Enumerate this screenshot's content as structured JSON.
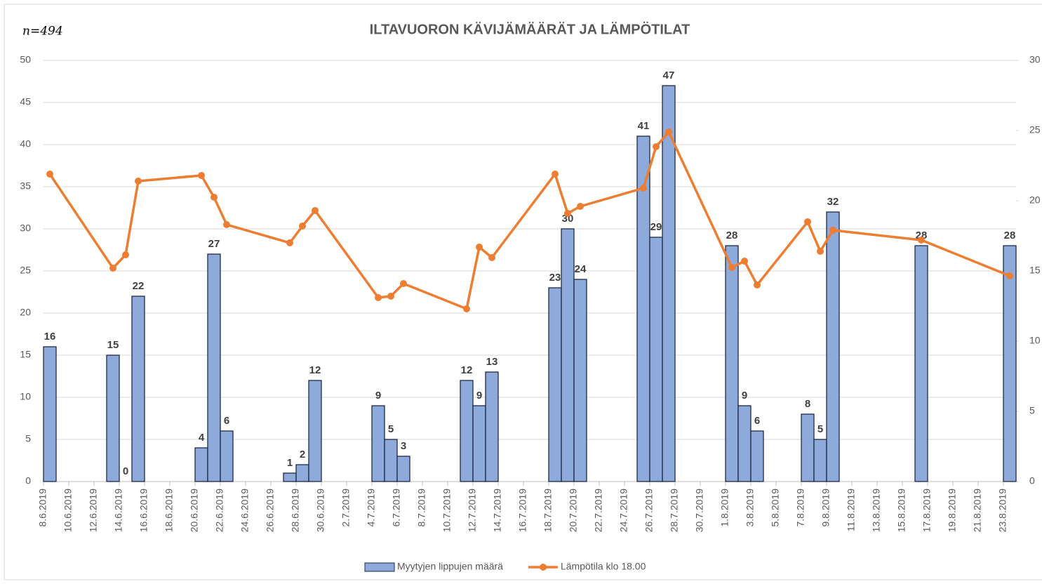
{
  "chart_data": {
    "type": "bar-line",
    "title": "ILTAVUORON KÄVIJÄMÄÄRÄT JA LÄMPÖTILAT",
    "annotation": "n=494",
    "x": [
      "8.6.2019",
      "13.6.2019",
      "14.6.2019",
      "15.6.2019",
      "20.6.2019",
      "21.6.2019",
      "22.6.2019",
      "27.6.2019",
      "28.6.2019",
      "29.6.2019",
      "4.7.2019",
      "5.7.2019",
      "6.7.2019",
      "11.7.2019",
      "12.7.2019",
      "13.7.2019",
      "18.7.2019",
      "19.7.2019",
      "20.7.2019",
      "25.7.2019",
      "26.7.2019",
      "27.7.2019",
      "1.8.2019",
      "2.8.2019",
      "3.8.2019",
      "7.8.2019",
      "8.8.2019",
      "9.8.2019",
      "16.8.2019",
      "23.8.2019"
    ],
    "series": [
      {
        "name": "Myytyjen lippujen määrä",
        "type": "bar",
        "color": "#8eaadb",
        "edge_color": "#1f2a44",
        "values": [
          16,
          15,
          0,
          22,
          4,
          27,
          6,
          1,
          2,
          12,
          9,
          5,
          3,
          12,
          9,
          13,
          23,
          30,
          24,
          41,
          29,
          47,
          28,
          9,
          6,
          8,
          5,
          32,
          28,
          28
        ]
      },
      {
        "name": "Lämpötila klo 18.00",
        "type": "line",
        "axis": "y2",
        "color": "#ed7d31",
        "values": [
          21.9,
          15.2,
          16.15,
          21.4,
          21.8,
          20.25,
          18.3,
          17,
          18.2,
          19.3,
          13.1,
          13.2,
          14.1,
          12.3,
          16.7,
          15.95,
          21.9,
          19.1,
          19.6,
          20.9,
          23.85,
          24.9,
          15.25,
          15.7,
          14,
          18.5,
          16.4,
          17.9,
          17.2,
          14.65
        ]
      }
    ],
    "xlim": [
      "8.6.2019",
      "23.8.2019"
    ],
    "xticks": [
      "8.6.2019",
      "10.6.2019",
      "12.6.2019",
      "14.6.2019",
      "16.6.2019",
      "18.6.2019",
      "20.6.2019",
      "22.6.2019",
      "24.6.2019",
      "26.6.2019",
      "28.6.2019",
      "30.6.2019",
      "2.7.2019",
      "4.7.2019",
      "6.7.2019",
      "8.7.2019",
      "10.7.2019",
      "12.7.2019",
      "14.7.2019",
      "16.7.2019",
      "18.7.2019",
      "20.7.2019",
      "22.7.2019",
      "24.7.2019",
      "26.7.2019",
      "28.7.2019",
      "30.7.2019",
      "1.8.2019",
      "3.8.2019",
      "5.8.2019",
      "7.8.2019",
      "9.8.2019",
      "11.8.2019",
      "13.8.2019",
      "15.8.2019",
      "17.8.2019",
      "19.8.2019",
      "21.8.2019",
      "23.8.2019"
    ],
    "ylim": [
      0,
      50
    ],
    "yticks": [
      0,
      5,
      10,
      15,
      20,
      25,
      30,
      35,
      40,
      45,
      50
    ],
    "y2lim": [
      0,
      30
    ],
    "y2ticks": [
      0,
      5,
      10,
      15,
      20,
      25,
      30
    ],
    "grid": true,
    "legend": "bottom"
  }
}
